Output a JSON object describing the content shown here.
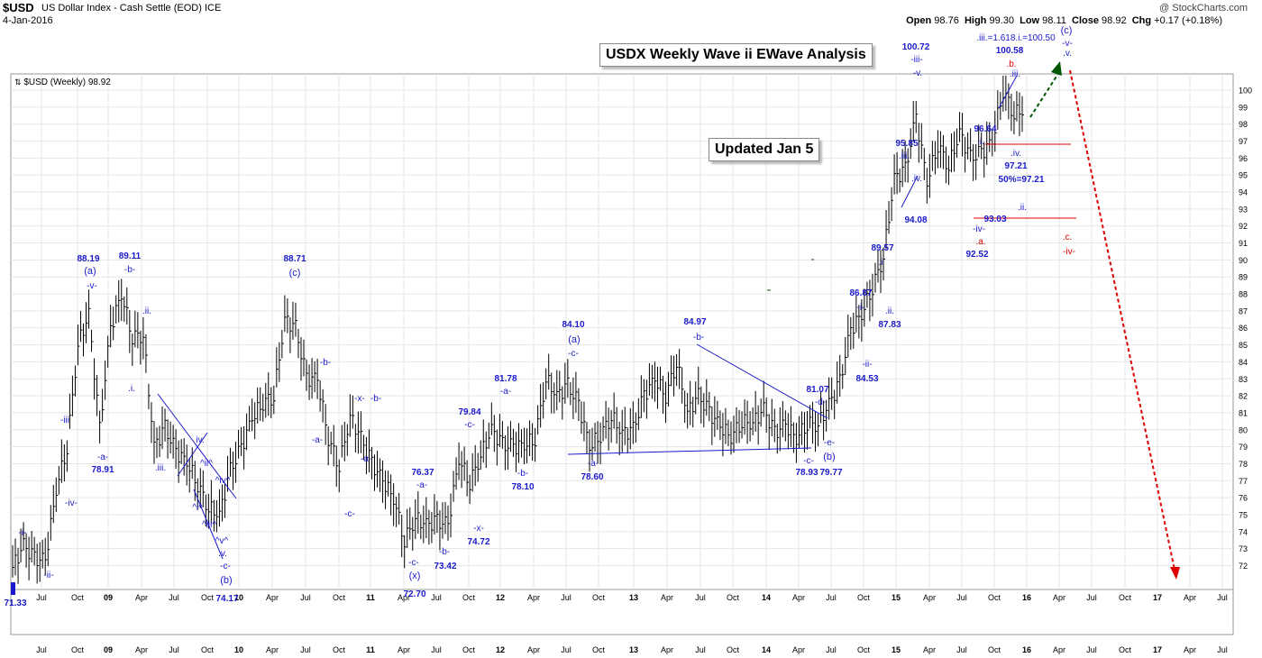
{
  "header": {
    "symbol": "$USD",
    "name": "US Dollar Index - Cash Settle (EOD) ICE",
    "date": "4-Jan-2016",
    "watermark": "@ StockCharts.com",
    "open_label": "Open",
    "open": "98.76",
    "high_label": "High",
    "high": "99.30",
    "low_label": "Low",
    "low": "98.11",
    "close_label": "Close",
    "close": "98.92",
    "chg_label": "Chg",
    "chg": "+0.17 (+0.18%)"
  },
  "legend": "$USD (Weekly) 98.92",
  "title_box": "USDX Weekly Wave ii EWave Analysis",
  "updated_box": "Updated Jan 5",
  "colors": {
    "price": "#000000",
    "annotation": "#1a1acc",
    "bear": "#dd0000",
    "bull": "#005500",
    "grid": "#e6e6e6"
  },
  "chart_data": {
    "type": "ohlc",
    "x": [
      "2008-04",
      "2008-05",
      "2008-06",
      "2008-07",
      "2008-08",
      "2008-09",
      "2008-10",
      "2008-11",
      "2008-12",
      "2009-01",
      "2009-02",
      "2009-03",
      "2009-04",
      "2009-05",
      "2009-06",
      "2009-07",
      "2009-08",
      "2009-09",
      "2009-10",
      "2009-11",
      "2009-12",
      "2010-01",
      "2010-02",
      "2010-03",
      "2010-04",
      "2010-05",
      "2010-06",
      "2010-07",
      "2010-08",
      "2010-09",
      "2010-10",
      "2010-11",
      "2010-12",
      "2011-01",
      "2011-02",
      "2011-03",
      "2011-04",
      "2011-05",
      "2011-06",
      "2011-07",
      "2011-08",
      "2011-09",
      "2011-10",
      "2011-11",
      "2011-12",
      "2012-01",
      "2012-02",
      "2012-03",
      "2012-04",
      "2012-05",
      "2012-06",
      "2012-07",
      "2012-08",
      "2012-09",
      "2012-10",
      "2012-11",
      "2012-12",
      "2013-01",
      "2013-02",
      "2013-03",
      "2013-04",
      "2013-05",
      "2013-06",
      "2013-07",
      "2013-08",
      "2013-09",
      "2013-10",
      "2013-11",
      "2013-12",
      "2014-01",
      "2014-02",
      "2014-03",
      "2014-04",
      "2014-05",
      "2014-06",
      "2014-07",
      "2014-08",
      "2014-09",
      "2014-10",
      "2014-11",
      "2014-12",
      "2015-01",
      "2015-02",
      "2015-03",
      "2015-04",
      "2015-05",
      "2015-06",
      "2015-07",
      "2015-08",
      "2015-09",
      "2015-10",
      "2015-11",
      "2015-12",
      "2016-01"
    ],
    "close": [
      71.9,
      73.2,
      72.4,
      72.3,
      76.5,
      79.0,
      85.0,
      86.8,
      80.0,
      86.0,
      88.0,
      85.5,
      85.6,
      79.0,
      80.1,
      78.7,
      78.1,
      76.8,
      75.4,
      75.0,
      77.6,
      78.9,
      80.7,
      81.6,
      82.0,
      86.5,
      86.0,
      83.0,
      83.0,
      79.5,
      77.9,
      80.8,
      79.5,
      78.0,
      77.0,
      76.0,
      73.5,
      74.8,
      74.4,
      74.6,
      74.4,
      78.3,
      76.9,
      78.5,
      80.0,
      79.1,
      79.0,
      79.1,
      79.5,
      83.0,
      82.0,
      82.6,
      81.5,
      79.0,
      79.7,
      80.8,
      79.8,
      80.0,
      82.0,
      83.0,
      82.0,
      84.0,
      81.0,
      82.0,
      81.0,
      80.2,
      79.6,
      80.5,
      80.4,
      81.2,
      79.8,
      80.3,
      79.5,
      80.4,
      80.3,
      81.5,
      82.8,
      85.9,
      86.8,
      88.4,
      90.2,
      94.8,
      95.3,
      98.4,
      94.6,
      96.8,
      95.5,
      97.5,
      96.0,
      96.3,
      97.0,
      100.0,
      98.6,
      98.9
    ],
    "annotations": [
      "71.33",
      "-i-",
      "-ii-",
      "-iii",
      "-iv-",
      "88.19",
      "(a)",
      "-v-",
      "-a-",
      "78.91",
      "89.11",
      "-b-",
      ".ii.",
      ".i.",
      ".iii.",
      "iv.",
      "^ii^",
      "^iv^",
      "^i^",
      "^iii^",
      "^v^",
      ".v.",
      "-c-",
      "(b)",
      "74.17",
      "88.71",
      "(c)",
      "-b-",
      "-a-",
      "-c-",
      "-x-",
      "-b-",
      "-a-",
      "76.37",
      "-a-",
      "-c-",
      "(x)",
      "72.70",
      "-b-",
      "73.42",
      "79.84",
      "-c-",
      "-x-",
      "74.72",
      "81.78",
      "-a-",
      "-b-",
      "78.10",
      "84.10",
      "(a)",
      "-c-",
      "-a-",
      "78.60",
      "84.97",
      "-b-",
      "81.07",
      "-d-",
      "-e-",
      "(b)",
      "-c-",
      "78.93",
      "79.77",
      "86.87",
      "-i-",
      "-ii-",
      "84.53",
      ".ii.",
      "87.83",
      "89.57",
      ".i",
      "95.85",
      ".iii.",
      ".iv.",
      "94.08",
      "100.72",
      "-iii-",
      "-v.",
      ".iii.=1.618.i.=100.50",
      "100.58",
      ".b.",
      ".iii.",
      "(c)",
      "-v-",
      ".v.",
      "96.64",
      ".i.",
      ".iv.",
      "97.21",
      "50%=97.21",
      ".ii.",
      "93.03",
      "-iv-",
      ".a.",
      "92.52",
      ".c.",
      "-iv-"
    ],
    "x_tick_labels": [
      "Jul",
      "Oct",
      "09",
      "Apr",
      "Jul",
      "Oct",
      "10",
      "Apr",
      "Jul",
      "Oct",
      "11",
      "Apr",
      "Jul",
      "Oct",
      "12",
      "Apr",
      "Jul",
      "Oct",
      "13",
      "Apr",
      "Jul",
      "Oct",
      "14",
      "Apr",
      "Jul",
      "Oct",
      "15",
      "Apr",
      "Jul",
      "Oct",
      "16",
      "Apr",
      "Jul",
      "Oct",
      "17",
      "Apr",
      "Jul"
    ],
    "y_tick_labels": [
      "72",
      "73",
      "74",
      "75",
      "76",
      "77",
      "78",
      "79",
      "80",
      "81",
      "82",
      "83",
      "84",
      "85",
      "86",
      "87",
      "88",
      "89",
      "90",
      "91",
      "92",
      "93",
      "94",
      "95",
      "96",
      "97",
      "98",
      "99",
      "100"
    ],
    "ylim": [
      71,
      101.5
    ],
    "grid": true
  }
}
